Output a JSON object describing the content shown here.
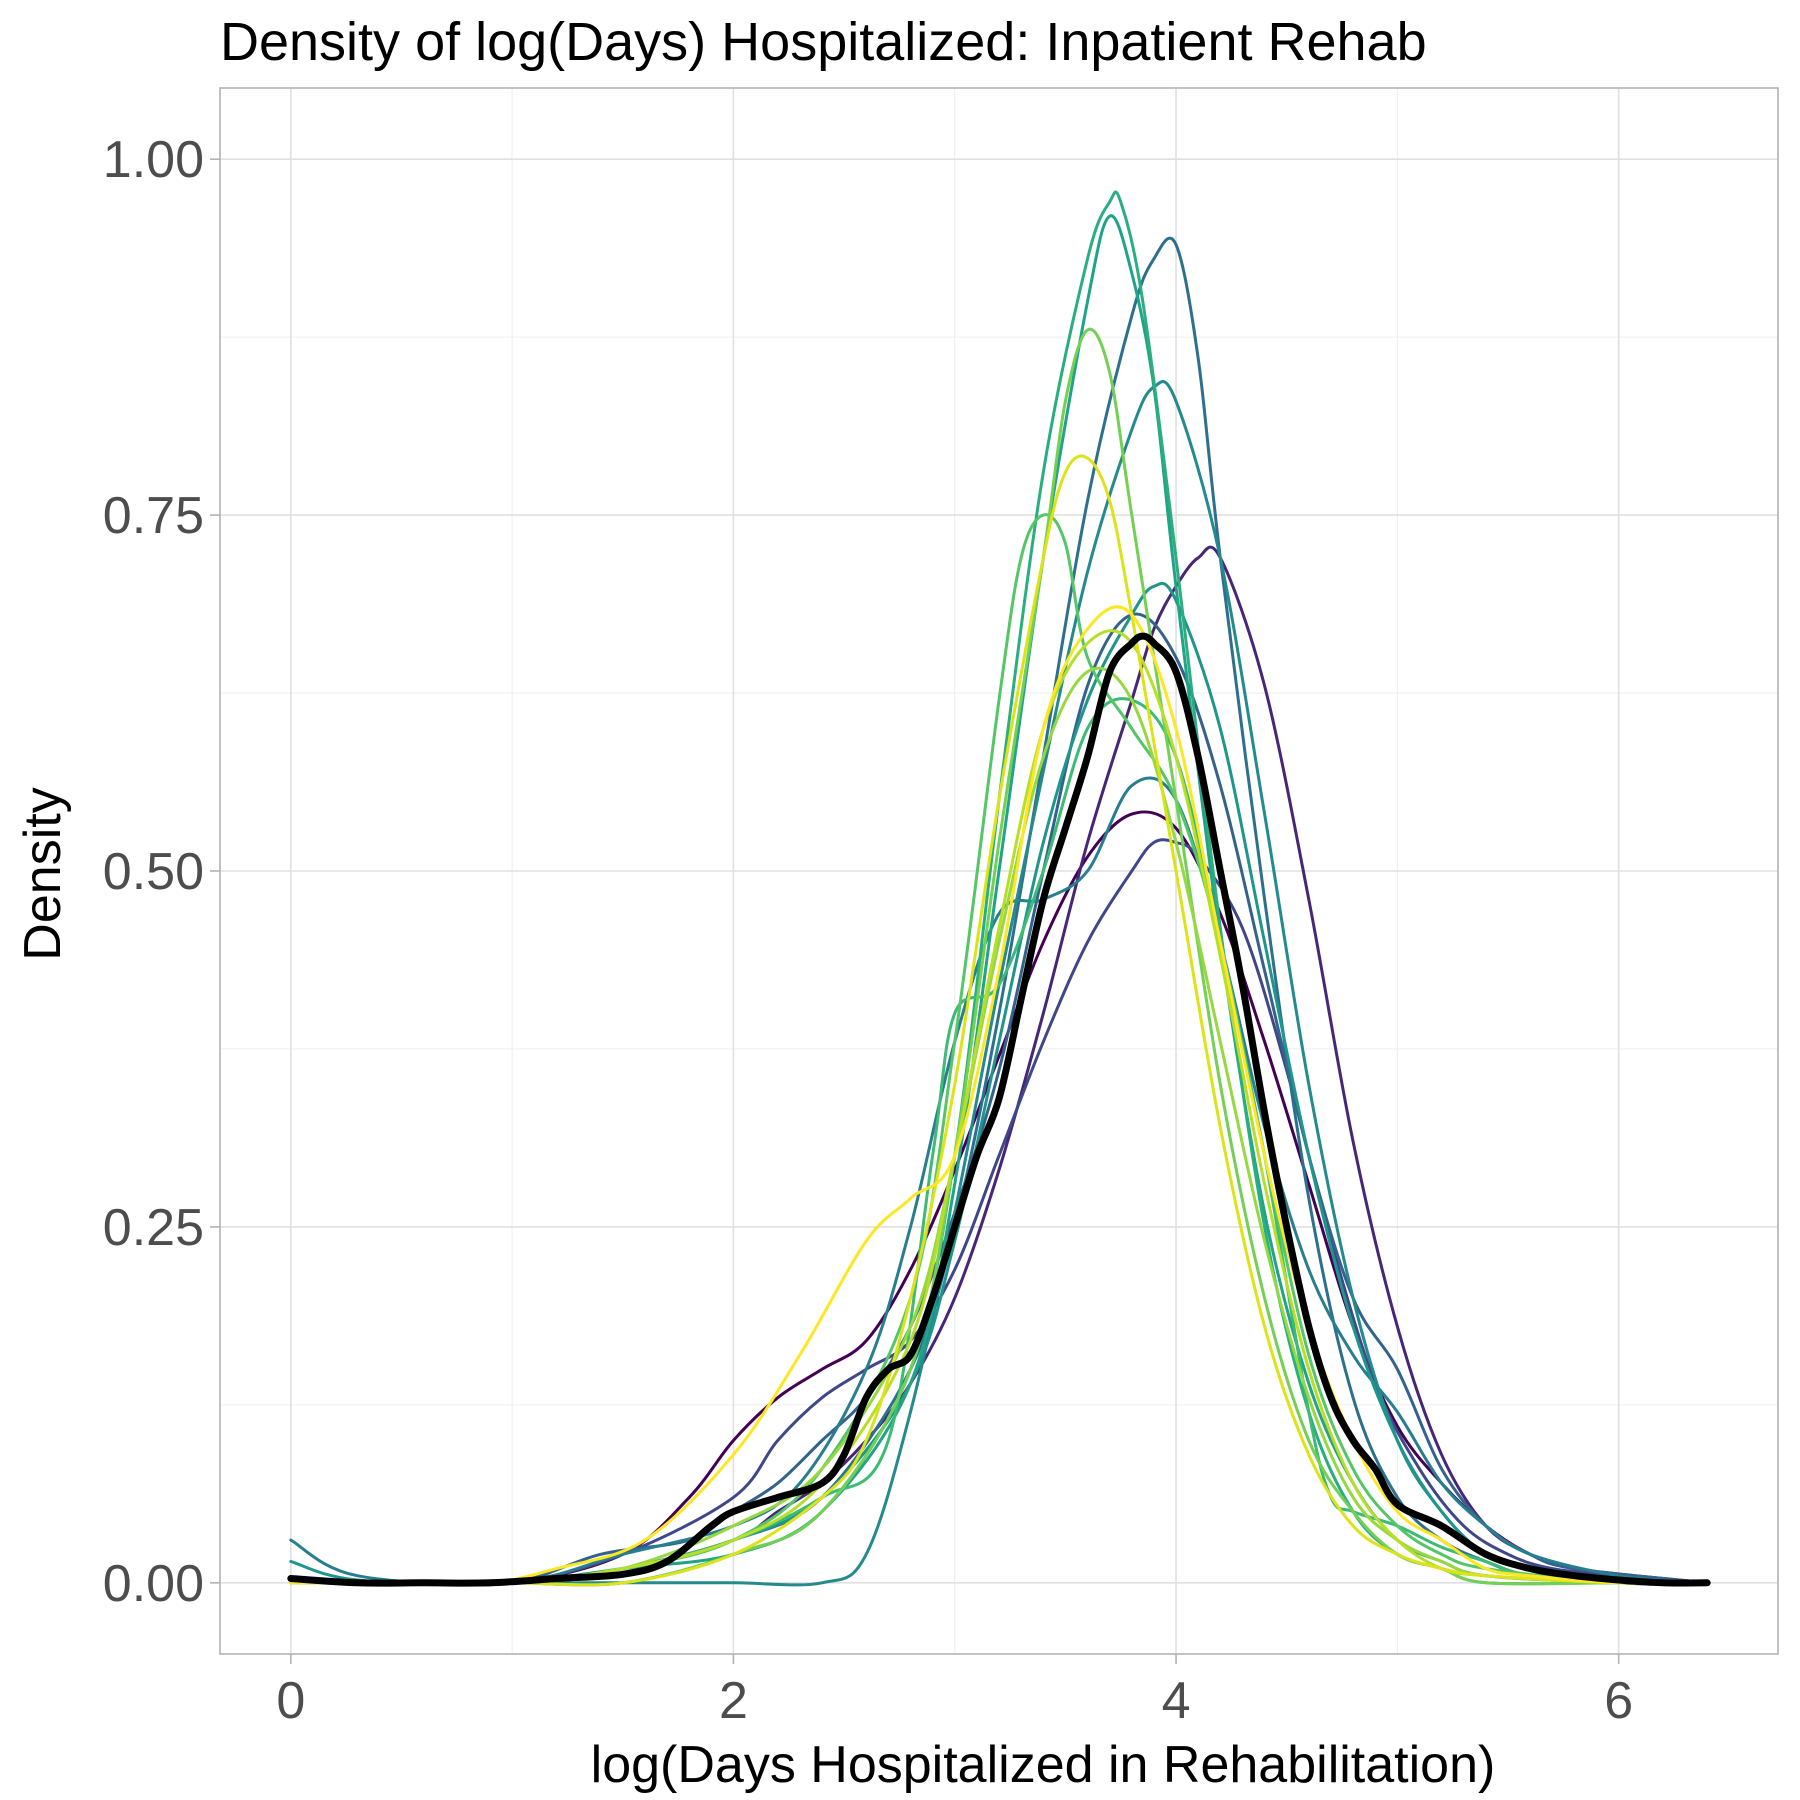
{
  "chart_data": {
    "type": "line",
    "title": "Density of log(Days) Hospitalized: Inpatient Rehab",
    "xlabel": "log(Days Hospitalized in Rehabilitation)",
    "ylabel": "Density",
    "xlim": [
      -0.32,
      6.72
    ],
    "ylim": [
      -0.05,
      1.05
    ],
    "x_ticks": [
      0,
      2,
      4,
      6
    ],
    "x_tick_labels": [
      "0",
      "2",
      "4",
      "6"
    ],
    "y_ticks": [
      0,
      0.25,
      0.5,
      0.75,
      1.0
    ],
    "y_tick_labels": [
      "0.00",
      "0.25",
      "0.50",
      "0.75",
      "1.00"
    ],
    "grid": true,
    "legend": "none",
    "series": [
      {
        "color": "#440154",
        "x": [
          0,
          0.5,
          1.0,
          1.5,
          1.8,
          2.0,
          2.2,
          2.4,
          2.6,
          2.8,
          3.0,
          3.2,
          3.4,
          3.6,
          3.8,
          4.0,
          4.2,
          4.4,
          4.6,
          4.8,
          5.0,
          5.2,
          5.4,
          5.6,
          5.8,
          6.0,
          6.4
        ],
        "y": [
          0.0,
          0.0,
          0.0,
          0.02,
          0.06,
          0.1,
          0.13,
          0.15,
          0.17,
          0.22,
          0.29,
          0.37,
          0.45,
          0.51,
          0.54,
          0.53,
          0.47,
          0.38,
          0.28,
          0.18,
          0.11,
          0.07,
          0.04,
          0.02,
          0.01,
          0.005,
          0.0
        ]
      },
      {
        "color": "#482677",
        "x": [
          0,
          0.5,
          1.0,
          1.5,
          2.0,
          2.2,
          2.4,
          2.6,
          2.8,
          3.0,
          3.2,
          3.4,
          3.6,
          3.8,
          3.9,
          4.0,
          4.1,
          4.2,
          4.4,
          4.6,
          4.8,
          5.0,
          5.2,
          5.4,
          5.6,
          5.8,
          6.4
        ],
        "y": [
          0.0,
          0.0,
          0.0,
          0.01,
          0.03,
          0.05,
          0.07,
          0.1,
          0.14,
          0.2,
          0.29,
          0.4,
          0.52,
          0.62,
          0.67,
          0.7,
          0.72,
          0.72,
          0.63,
          0.48,
          0.31,
          0.18,
          0.09,
          0.04,
          0.02,
          0.01,
          0.0
        ]
      },
      {
        "color": "#404788",
        "x": [
          0,
          0.5,
          1.0,
          1.5,
          2.0,
          2.2,
          2.4,
          2.6,
          2.8,
          3.0,
          3.2,
          3.4,
          3.6,
          3.8,
          3.9,
          4.0,
          4.1,
          4.3,
          4.5,
          4.7,
          4.9,
          5.1,
          5.3,
          5.5,
          5.7,
          6.0,
          6.4
        ],
        "y": [
          0.0,
          0.0,
          0.0,
          0.02,
          0.06,
          0.1,
          0.13,
          0.15,
          0.17,
          0.22,
          0.3,
          0.38,
          0.45,
          0.5,
          0.52,
          0.52,
          0.51,
          0.46,
          0.36,
          0.24,
          0.14,
          0.08,
          0.04,
          0.02,
          0.01,
          0.005,
          0.0
        ]
      },
      {
        "color": "#33638d",
        "x": [
          0,
          0.5,
          1.0,
          1.4,
          1.8,
          2.0,
          2.2,
          2.4,
          2.6,
          2.8,
          3.0,
          3.2,
          3.4,
          3.6,
          3.8,
          4.0,
          4.2,
          4.4,
          4.6,
          4.8,
          5.0,
          5.2,
          5.4,
          5.6,
          5.8,
          6.4
        ],
        "y": [
          0.0,
          0.0,
          0.0,
          0.02,
          0.03,
          0.05,
          0.07,
          0.1,
          0.13,
          0.18,
          0.26,
          0.36,
          0.5,
          0.63,
          0.68,
          0.65,
          0.56,
          0.43,
          0.3,
          0.2,
          0.15,
          0.08,
          0.04,
          0.02,
          0.01,
          0.0
        ]
      },
      {
        "color": "#2d708e",
        "x": [
          0,
          0.5,
          1.0,
          1.5,
          2.0,
          2.4,
          2.8,
          3.0,
          3.2,
          3.4,
          3.6,
          3.8,
          3.9,
          4.0,
          4.1,
          4.2,
          4.4,
          4.6,
          4.8,
          5.0,
          5.2,
          5.4,
          5.6,
          6.0,
          6.4
        ],
        "y": [
          0.0,
          0.0,
          0.0,
          0.01,
          0.03,
          0.06,
          0.15,
          0.25,
          0.4,
          0.58,
          0.76,
          0.89,
          0.93,
          0.94,
          0.86,
          0.72,
          0.48,
          0.27,
          0.13,
          0.06,
          0.03,
          0.015,
          0.005,
          0.0,
          0.0
        ]
      },
      {
        "color": "#287d8e",
        "x": [
          0,
          0.3,
          1.0,
          1.5,
          2.0,
          2.3,
          2.6,
          2.8,
          3.0,
          3.2,
          3.4,
          3.6,
          3.8,
          4.0,
          4.2,
          4.4,
          4.6,
          4.8,
          5.0,
          5.2,
          5.4,
          5.6,
          6.0,
          6.4
        ],
        "y": [
          0.03,
          0.005,
          0.0,
          0.02,
          0.04,
          0.07,
          0.15,
          0.25,
          0.38,
          0.47,
          0.48,
          0.5,
          0.56,
          0.55,
          0.45,
          0.32,
          0.22,
          0.16,
          0.12,
          0.07,
          0.04,
          0.02,
          0.005,
          0.0
        ]
      },
      {
        "color": "#238a8d",
        "x": [
          0,
          0.5,
          1.0,
          1.6,
          2.0,
          2.4,
          2.6,
          2.8,
          3.0,
          3.2,
          3.4,
          3.6,
          3.8,
          3.9,
          4.0,
          4.2,
          4.4,
          4.6,
          4.8,
          5.0,
          5.2,
          5.4,
          5.6,
          6.0,
          6.4
        ],
        "y": [
          0.0,
          0.0,
          0.0,
          0.0,
          0.0,
          0.0,
          0.02,
          0.12,
          0.26,
          0.42,
          0.57,
          0.71,
          0.81,
          0.84,
          0.83,
          0.72,
          0.54,
          0.35,
          0.2,
          0.1,
          0.05,
          0.02,
          0.01,
          0.0,
          0.0
        ]
      },
      {
        "color": "#1f968b",
        "x": [
          0,
          0.3,
          1.0,
          1.5,
          2.0,
          2.4,
          2.8,
          3.0,
          3.2,
          3.4,
          3.6,
          3.8,
          3.9,
          4.0,
          4.2,
          4.4,
          4.6,
          4.8,
          5.0,
          5.2,
          5.4,
          5.6,
          6.0,
          6.4
        ],
        "y": [
          0.015,
          0.002,
          0.0,
          0.01,
          0.03,
          0.06,
          0.14,
          0.24,
          0.38,
          0.52,
          0.62,
          0.68,
          0.7,
          0.69,
          0.6,
          0.45,
          0.3,
          0.18,
          0.1,
          0.05,
          0.02,
          0.01,
          0.0,
          0.0
        ]
      },
      {
        "color": "#20a387",
        "x": [
          0,
          0.5,
          1.0,
          1.5,
          2.0,
          2.4,
          2.8,
          3.0,
          3.2,
          3.4,
          3.6,
          3.7,
          3.8,
          3.9,
          4.0,
          4.2,
          4.4,
          4.6,
          4.8,
          5.0,
          5.2,
          5.4,
          6.0,
          6.4
        ],
        "y": [
          0.0,
          0.0,
          0.0,
          0.01,
          0.02,
          0.05,
          0.14,
          0.28,
          0.5,
          0.72,
          0.9,
          0.96,
          0.92,
          0.84,
          0.7,
          0.45,
          0.26,
          0.14,
          0.07,
          0.03,
          0.015,
          0.005,
          0.0,
          0.0
        ]
      },
      {
        "color": "#29af7f",
        "x": [
          0,
          0.5,
          1.0,
          1.5,
          2.0,
          2.4,
          2.8,
          3.0,
          3.2,
          3.4,
          3.6,
          3.7,
          3.75,
          3.85,
          4.0,
          4.2,
          4.4,
          4.6,
          4.8,
          5.0,
          5.2,
          5.4,
          6.0,
          6.4
        ],
        "y": [
          0.0,
          0.0,
          0.0,
          0.0,
          0.02,
          0.05,
          0.15,
          0.3,
          0.55,
          0.78,
          0.93,
          0.97,
          0.97,
          0.9,
          0.72,
          0.46,
          0.25,
          0.12,
          0.05,
          0.02,
          0.01,
          0.0,
          0.0,
          0.0
        ]
      },
      {
        "color": "#3cbb75",
        "x": [
          0,
          0.5,
          1.0,
          1.5,
          2.0,
          2.4,
          2.7,
          2.9,
          3.0,
          3.2,
          3.4,
          3.6,
          3.8,
          4.0,
          4.2,
          4.4,
          4.6,
          4.7,
          4.8,
          5.0,
          5.2,
          5.4,
          5.6,
          6.0,
          6.4
        ],
        "y": [
          0.0,
          0.0,
          0.0,
          0.01,
          0.03,
          0.06,
          0.1,
          0.3,
          0.4,
          0.42,
          0.5,
          0.6,
          0.62,
          0.58,
          0.45,
          0.3,
          0.12,
          0.06,
          0.05,
          0.04,
          0.025,
          0.015,
          0.005,
          0.0,
          0.0
        ]
      },
      {
        "color": "#55c667",
        "x": [
          0,
          0.5,
          1.0,
          1.5,
          2.0,
          2.4,
          2.8,
          3.0,
          3.2,
          3.3,
          3.4,
          3.5,
          3.6,
          3.8,
          4.0,
          4.2,
          4.4,
          4.6,
          4.8,
          5.0,
          5.2,
          5.4,
          6.0,
          6.4
        ],
        "y": [
          0.0,
          0.0,
          0.0,
          0.01,
          0.03,
          0.08,
          0.2,
          0.38,
          0.62,
          0.72,
          0.75,
          0.73,
          0.65,
          0.6,
          0.55,
          0.45,
          0.3,
          0.16,
          0.08,
          0.04,
          0.02,
          0.01,
          0.0,
          0.0
        ]
      },
      {
        "color": "#73d055",
        "x": [
          0,
          0.5,
          1.0,
          1.5,
          2.0,
          2.4,
          2.8,
          3.0,
          3.2,
          3.4,
          3.5,
          3.6,
          3.7,
          3.8,
          4.0,
          4.2,
          4.4,
          4.6,
          4.8,
          5.0,
          5.2,
          5.4,
          6.0,
          6.4
        ],
        "y": [
          0.0,
          0.0,
          0.0,
          0.0,
          0.02,
          0.05,
          0.15,
          0.3,
          0.52,
          0.72,
          0.83,
          0.88,
          0.85,
          0.75,
          0.55,
          0.35,
          0.2,
          0.1,
          0.05,
          0.02,
          0.01,
          0.0,
          0.0,
          0.0
        ]
      },
      {
        "color": "#95d840",
        "x": [
          0,
          0.5,
          1.0,
          1.5,
          2.0,
          2.4,
          2.8,
          3.0,
          3.2,
          3.4,
          3.6,
          3.8,
          4.0,
          4.2,
          4.4,
          4.6,
          4.8,
          5.0,
          5.2,
          5.4,
          6.0,
          6.4
        ],
        "y": [
          0.0,
          0.0,
          0.0,
          0.01,
          0.04,
          0.08,
          0.18,
          0.3,
          0.45,
          0.58,
          0.64,
          0.62,
          0.52,
          0.38,
          0.24,
          0.13,
          0.06,
          0.03,
          0.015,
          0.005,
          0.0,
          0.0
        ]
      },
      {
        "color": "#b8de29",
        "x": [
          0,
          0.5,
          1.0,
          1.5,
          2.0,
          2.4,
          2.8,
          3.0,
          3.2,
          3.4,
          3.6,
          3.8,
          4.0,
          4.2,
          4.4,
          4.6,
          4.8,
          5.0,
          5.2,
          5.4,
          6.0,
          6.4
        ],
        "y": [
          0.0,
          0.0,
          0.0,
          0.01,
          0.03,
          0.07,
          0.17,
          0.3,
          0.46,
          0.6,
          0.66,
          0.66,
          0.58,
          0.44,
          0.28,
          0.15,
          0.07,
          0.03,
          0.01,
          0.005,
          0.0,
          0.0
        ]
      },
      {
        "color": "#dce319",
        "x": [
          0,
          0.5,
          1.0,
          1.5,
          2.0,
          2.4,
          2.6,
          2.8,
          3.0,
          3.2,
          3.4,
          3.5,
          3.6,
          3.7,
          3.8,
          4.0,
          4.2,
          4.4,
          4.6,
          4.8,
          5.0,
          5.2,
          5.4,
          6.0,
          6.4
        ],
        "y": [
          0.0,
          0.0,
          0.0,
          0.0,
          0.02,
          0.06,
          0.1,
          0.2,
          0.35,
          0.55,
          0.72,
          0.78,
          0.79,
          0.76,
          0.68,
          0.5,
          0.32,
          0.18,
          0.09,
          0.04,
          0.02,
          0.01,
          0.005,
          0.0,
          0.0
        ]
      },
      {
        "color": "#fde725",
        "x": [
          0,
          0.5,
          0.9,
          1.2,
          1.6,
          2.0,
          2.3,
          2.6,
          2.8,
          3.0,
          3.2,
          3.4,
          3.6,
          3.8,
          4.0,
          4.2,
          4.4,
          4.6,
          4.8,
          5.0,
          5.2,
          5.4,
          5.6,
          6.0,
          6.4
        ],
        "y": [
          0.0,
          0.0,
          0.0,
          0.01,
          0.03,
          0.09,
          0.16,
          0.24,
          0.27,
          0.3,
          0.43,
          0.6,
          0.67,
          0.68,
          0.6,
          0.45,
          0.3,
          0.18,
          0.1,
          0.05,
          0.03,
          0.01,
          0.005,
          0.0,
          0.0
        ]
      },
      {
        "color": "#000000",
        "pooled": true,
        "x": [
          0,
          0.3,
          0.6,
          0.9,
          1.2,
          1.5,
          1.7,
          1.9,
          2.0,
          2.2,
          2.4,
          2.5,
          2.6,
          2.7,
          2.8,
          2.9,
          3.0,
          3.1,
          3.2,
          3.3,
          3.4,
          3.5,
          3.6,
          3.7,
          3.8,
          3.85,
          3.9,
          4.0,
          4.1,
          4.2,
          4.3,
          4.4,
          4.5,
          4.6,
          4.7,
          4.8,
          4.9,
          5.0,
          5.2,
          5.4,
          5.6,
          5.8,
          6.0,
          6.2,
          6.4
        ],
        "y": [
          0.003,
          0.0,
          0.0,
          0.0,
          0.003,
          0.006,
          0.015,
          0.04,
          0.05,
          0.06,
          0.07,
          0.09,
          0.13,
          0.15,
          0.16,
          0.2,
          0.25,
          0.3,
          0.34,
          0.41,
          0.48,
          0.53,
          0.58,
          0.64,
          0.66,
          0.665,
          0.66,
          0.64,
          0.58,
          0.5,
          0.42,
          0.33,
          0.25,
          0.18,
          0.13,
          0.1,
          0.08,
          0.055,
          0.04,
          0.02,
          0.01,
          0.005,
          0.002,
          0.0,
          0.0
        ]
      }
    ]
  }
}
